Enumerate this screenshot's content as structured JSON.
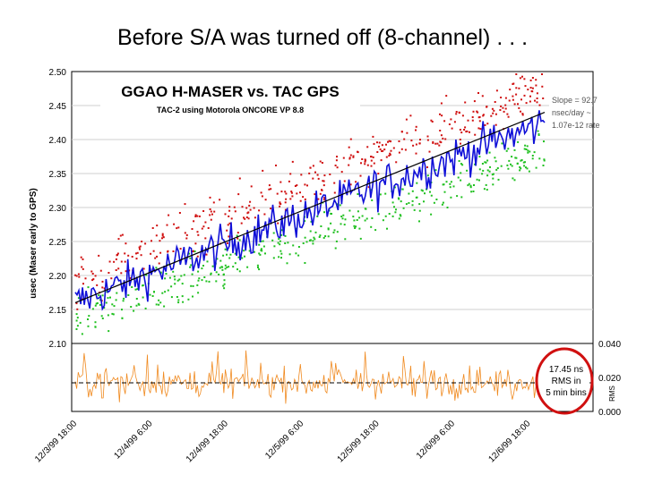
{
  "slide_title": "Before S/A was turned off (8-channel) . . .",
  "chart_data": [
    {
      "type": "scatter",
      "title": "GGAO H-MASER vs. TAC GPS",
      "subtitle": "TAC-2 using Motorola ONCORE VP 8.8",
      "ylabel": "usec (Maser early to GPS)",
      "ylim": [
        2.1,
        2.5
      ],
      "yticks": [
        "2.50",
        "2.45",
        "2.40",
        "2.35",
        "2.30",
        "2.25",
        "2.20",
        "2.15",
        "2.10"
      ],
      "xticks": [
        "12/3/99 18:00",
        "12/4/99 6:00",
        "12/4/99 18:00",
        "12/5/99 6:00",
        "12/5/99 18:00",
        "12/6/99 6:00",
        "12/6/99 18:00"
      ],
      "trend": {
        "start": 2.16,
        "end": 2.44
      },
      "series": [
        {
          "role": "average",
          "color": "#1010d8",
          "start": 2.16,
          "end": 2.425,
          "noise": 0.025
        },
        {
          "role": "upper",
          "color": "#d01010",
          "start": 2.19,
          "end": 2.48,
          "noise": 0.035
        },
        {
          "role": "lower",
          "color": "#20c020",
          "start": 2.135,
          "end": 2.385,
          "noise": 0.03
        }
      ],
      "annotation_lines": [
        "Slope = 92.7",
        "nsec/day ~",
        "1.07e-12 rate"
      ]
    },
    {
      "type": "scatter",
      "ylabel": "RMS",
      "ylim": [
        0.0,
        0.04
      ],
      "yticks": [
        "0.040",
        "0.020",
        "0.000"
      ],
      "series": [
        {
          "role": "rms",
          "color": "#f08a20",
          "mean": 0.017,
          "noise": 0.009
        }
      ],
      "annotation_lines": [
        "17.45 ns",
        "RMS in",
        "5 min bins"
      ],
      "highlight_color": "#d01010"
    }
  ]
}
